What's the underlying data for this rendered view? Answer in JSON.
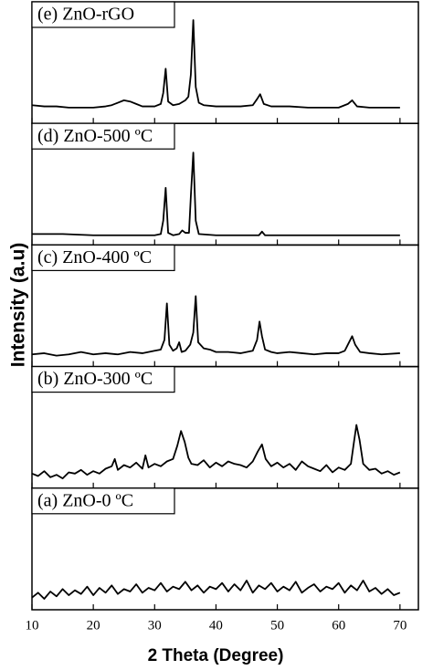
{
  "y_label": "Intensity (a.u)",
  "chart_data": [
    {
      "type": "line",
      "label": "(e) ZnO-rGO",
      "color": "#000000",
      "xlim": [
        10,
        73
      ],
      "ylim": [
        0,
        100
      ],
      "x": [
        10,
        12,
        14,
        16,
        18,
        20,
        22,
        23,
        24,
        25,
        26,
        27,
        28,
        29,
        30,
        31,
        31.4,
        31.8,
        32.2,
        33,
        34,
        35,
        35.5,
        35.9,
        36.3,
        36.7,
        37.2,
        38,
        40,
        42,
        44,
        46,
        46.7,
        47.2,
        47.8,
        49,
        52,
        55,
        58,
        60,
        61.5,
        62.2,
        63,
        65,
        68,
        70
      ],
      "values": [
        15,
        14,
        14,
        13,
        13,
        13,
        14,
        15,
        17,
        19,
        18,
        16,
        14,
        14,
        14,
        16,
        25,
        45,
        18,
        15,
        16,
        19,
        22,
        40,
        85,
        30,
        17,
        15,
        14,
        14,
        14,
        15,
        20,
        24,
        16,
        14,
        14,
        13,
        13,
        13,
        16,
        19,
        14,
        13,
        13,
        13
      ]
    },
    {
      "type": "line",
      "label": "(d) ZnO-500 ºC",
      "color": "#000000",
      "xlim": [
        10,
        73
      ],
      "ylim": [
        0,
        100
      ],
      "x": [
        10,
        15,
        20,
        25,
        30,
        31,
        31.4,
        31.8,
        32.2,
        33,
        34,
        34.5,
        35,
        35.6,
        35.9,
        36.3,
        36.7,
        37.2,
        40,
        45,
        47,
        47.5,
        48,
        55,
        60,
        62,
        65,
        70
      ],
      "values": [
        9,
        9,
        8,
        8,
        8,
        9,
        20,
        47,
        10,
        8,
        9,
        12,
        10,
        10,
        40,
        76,
        20,
        9,
        8,
        8,
        8,
        11,
        8,
        8,
        8,
        8,
        8,
        8
      ]
    },
    {
      "type": "line",
      "label": "(c) ZnO-400 ºC",
      "color": "#000000",
      "xlim": [
        10,
        73
      ],
      "ylim": [
        0,
        100
      ],
      "x": [
        10,
        12,
        14,
        16,
        18,
        20,
        22,
        24,
        26,
        28,
        29,
        30,
        31,
        31.6,
        32,
        32.4,
        33,
        33.6,
        34,
        34.4,
        35,
        35.8,
        36.3,
        36.7,
        37.1,
        38,
        39,
        40,
        42,
        44,
        45,
        46,
        46.7,
        47.1,
        47.5,
        48,
        49,
        50,
        52,
        54,
        56,
        58,
        60,
        61,
        61.7,
        62.2,
        62.7,
        63.5,
        65,
        67,
        70
      ],
      "values": [
        10,
        11,
        9,
        10,
        12,
        10,
        11,
        10,
        12,
        11,
        12,
        13,
        14,
        22,
        52,
        18,
        13,
        15,
        20,
        12,
        13,
        18,
        28,
        58,
        20,
        15,
        14,
        12,
        12,
        11,
        12,
        13,
        22,
        37,
        25,
        14,
        12,
        11,
        12,
        11,
        10,
        11,
        11,
        13,
        20,
        25,
        18,
        12,
        11,
        10,
        11
      ]
    },
    {
      "type": "line",
      "label": "(b) ZnO-300 ºC",
      "color": "#000000",
      "xlim": [
        10,
        73
      ],
      "ylim": [
        0,
        100
      ],
      "x": [
        10,
        11,
        12,
        13,
        14,
        15,
        16,
        17,
        18,
        19,
        20,
        21,
        22,
        23,
        23.5,
        24,
        25,
        26,
        27,
        28,
        28.5,
        29,
        30,
        31,
        32,
        33,
        33.7,
        34.3,
        34.9,
        35.5,
        36,
        37,
        38,
        39,
        40,
        41,
        42,
        43,
        44,
        45,
        46,
        46.8,
        47.5,
        48.1,
        49,
        50,
        51,
        52,
        53,
        54,
        55,
        56,
        57,
        58,
        59,
        60,
        61,
        62,
        62.5,
        62.9,
        63.4,
        64,
        65,
        66,
        67,
        68,
        69,
        70
      ],
      "values": [
        12,
        10,
        14,
        9,
        11,
        8,
        13,
        12,
        15,
        11,
        14,
        12,
        16,
        18,
        24,
        15,
        19,
        17,
        21,
        16,
        27,
        17,
        20,
        18,
        22,
        24,
        35,
        47,
        38,
        25,
        20,
        19,
        23,
        17,
        21,
        18,
        22,
        20,
        19,
        17,
        22,
        30,
        36,
        24,
        18,
        21,
        17,
        20,
        15,
        22,
        18,
        16,
        14,
        19,
        13,
        17,
        15,
        20,
        38,
        52,
        40,
        20,
        15,
        16,
        12,
        14,
        11,
        13
      ]
    },
    {
      "type": "line",
      "label": "(a) ZnO-0 ºC",
      "color": "#000000",
      "xlim": [
        10,
        73
      ],
      "ylim": [
        0,
        100
      ],
      "x_label": "2 Theta (Degree)",
      "xticks": [
        10,
        20,
        30,
        40,
        50,
        60,
        70
      ],
      "x": [
        10,
        11,
        12,
        13,
        14,
        15,
        16,
        17,
        18,
        19,
        20,
        21,
        22,
        23,
        24,
        25,
        26,
        27,
        28,
        29,
        30,
        31,
        32,
        33,
        34,
        35,
        36,
        37,
        38,
        39,
        40,
        41,
        42,
        43,
        44,
        45,
        46,
        47,
        48,
        49,
        50,
        51,
        52,
        53,
        54,
        55,
        56,
        57,
        58,
        59,
        60,
        61,
        62,
        63,
        64,
        65,
        66,
        67,
        68,
        69,
        70
      ],
      "values": [
        10,
        14,
        9,
        15,
        11,
        17,
        12,
        16,
        13,
        19,
        12,
        18,
        14,
        20,
        13,
        17,
        15,
        21,
        14,
        18,
        16,
        22,
        15,
        19,
        17,
        23,
        16,
        20,
        14,
        19,
        17,
        22,
        15,
        21,
        16,
        24,
        14,
        20,
        17,
        22,
        15,
        19,
        16,
        23,
        14,
        18,
        21,
        15,
        19,
        17,
        22,
        14,
        20,
        16,
        24,
        15,
        18,
        13,
        17,
        12,
        14
      ]
    }
  ]
}
